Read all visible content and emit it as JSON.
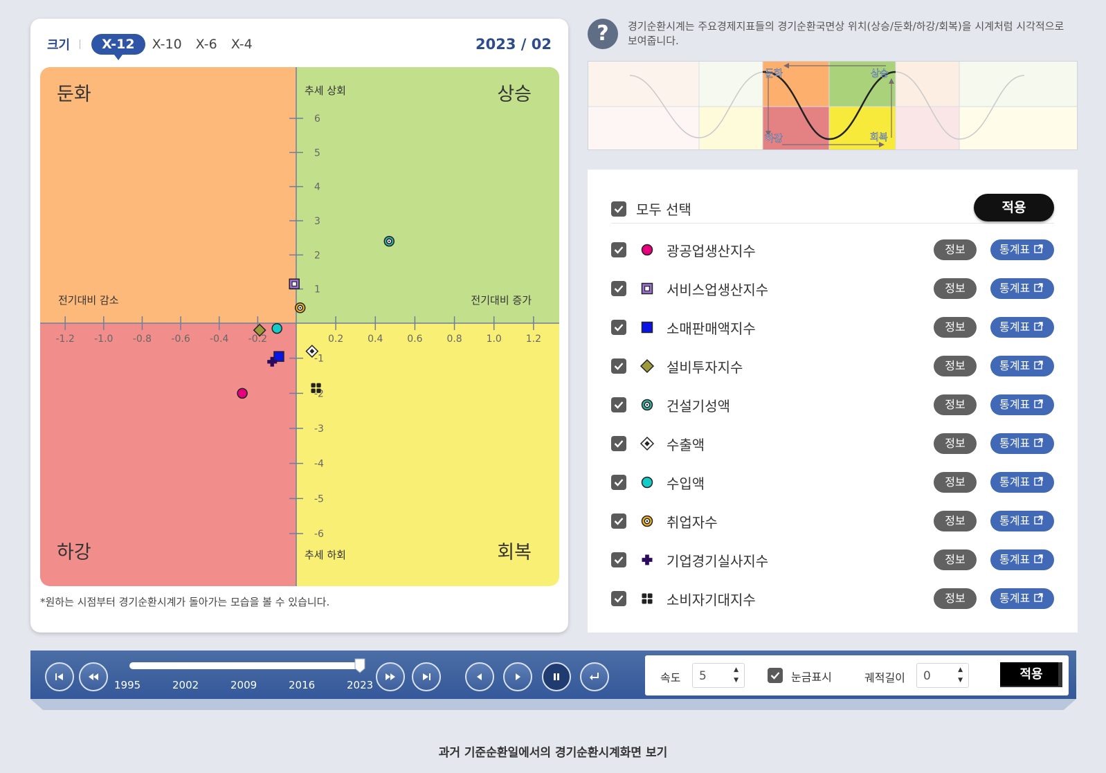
{
  "size": {
    "label": "크기",
    "options": [
      "X-12",
      "X-10",
      "X-6",
      "X-4"
    ],
    "active": 0
  },
  "period": "2023 / 02",
  "chart_note": "*원하는 시점부터 경기순환시계가 돌아가는 모습을 볼 수 있습니다.",
  "chart_data": {
    "type": "scatter",
    "quadrants": {
      "top_left": "둔화",
      "top_right": "상승",
      "bottom_left": "하강",
      "bottom_right": "회복"
    },
    "quadrant_colors": {
      "top_left": "#fdb97a",
      "top_right": "#c2df8c",
      "bottom_left": "#f18e8b",
      "bottom_right": "#f8ef74"
    },
    "axis_labels": {
      "y_top": "추세 상회",
      "y_bottom": "추세 하회",
      "x_left": "전기대비 감소",
      "x_right": "전기대비 증가"
    },
    "xlim": [
      -1.33,
      1.33
    ],
    "ylim": [
      -7.5,
      7.5
    ],
    "x_ticks": [
      -1.2,
      -1.0,
      -0.8,
      -0.6,
      -0.4,
      -0.2,
      0.2,
      0.4,
      0.6,
      0.8,
      1.0,
      1.2
    ],
    "x_tick_labels": [
      "-1.2",
      "-1.0",
      "-0.8",
      "-0.6",
      "-0.4",
      "-0.2",
      "0.2",
      "0.4",
      "0.6",
      "0.8",
      "1.0",
      "1.2"
    ],
    "y_ticks": [
      6,
      5,
      4,
      3,
      2,
      1,
      -1,
      -2,
      -3,
      -4,
      -5,
      -6
    ],
    "y_tick_labels": [
      "6",
      "5",
      "4",
      "3",
      "2",
      "1",
      "-1",
      "-2",
      "-3",
      "-4",
      "-5",
      "-6"
    ],
    "grid": false,
    "series": [
      {
        "name": "광공업생산지수",
        "marker": "circle",
        "color": "#e6007e",
        "x": -0.28,
        "y": -2.0
      },
      {
        "name": "서비스업생산지수",
        "marker": "square-dot",
        "color": "#9a6fd0",
        "x": -0.01,
        "y": 1.15
      },
      {
        "name": "소매판매액지수",
        "marker": "square",
        "color": "#0a14e6",
        "x": -0.09,
        "y": -0.95
      },
      {
        "name": "설비투자지수",
        "marker": "diamond",
        "color": "#9c9a3b",
        "x": -0.19,
        "y": -0.2
      },
      {
        "name": "건설기성액",
        "marker": "circle-dot",
        "color": "#33b3a6",
        "x": 0.47,
        "y": 2.4
      },
      {
        "name": "수출액",
        "marker": "diamond-dot",
        "color": "#ffffff",
        "x": 0.08,
        "y": -0.8
      },
      {
        "name": "수입액",
        "marker": "circle",
        "color": "#14cbc8",
        "x": -0.1,
        "y": -0.15
      },
      {
        "name": "취업자수",
        "marker": "circle-dot",
        "color": "#f1b51c",
        "x": 0.02,
        "y": 0.45
      },
      {
        "name": "기업경기실사지수",
        "marker": "cross",
        "color": "#2b0a5e",
        "x": -0.125,
        "y": -1.1
      },
      {
        "name": "소비자기대지수",
        "marker": "quad",
        "color": "#222222",
        "x": 0.1,
        "y": -1.85
      }
    ]
  },
  "help": {
    "icon": "question-icon",
    "text": "경기순환시계는 주요경제지표들의 경기순환국면상 위치(상승/둔화/하강/회복)을 시계처럼 시각적으로 보여줍니다."
  },
  "cycle_diagram": {
    "labels": [
      "둔화",
      "상승",
      "하강",
      "회복"
    ]
  },
  "indicators": {
    "select_all_label": "모두 선택",
    "apply_label": "적용",
    "info_label": "정보",
    "stat_label": "통계표",
    "stat_icon": "external-link-icon",
    "items": [
      {
        "name": "광공업생산지수",
        "checked": true
      },
      {
        "name": "서비스업생산지수",
        "checked": true
      },
      {
        "name": "소매판매액지수",
        "checked": true
      },
      {
        "name": "설비투자지수",
        "checked": true
      },
      {
        "name": "건설기성액",
        "checked": true
      },
      {
        "name": "수출액",
        "checked": true
      },
      {
        "name": "수입액",
        "checked": true
      },
      {
        "name": "취업자수",
        "checked": true
      },
      {
        "name": "기업경기실사지수",
        "checked": true
      },
      {
        "name": "소비자기대지수",
        "checked": true
      }
    ]
  },
  "timeline": {
    "years": [
      "1995",
      "2002",
      "2009",
      "2016",
      "2023"
    ],
    "position": 0.98,
    "speed_label": "속도",
    "speed_value": "5",
    "grid_label": "눈금표시",
    "grid_checked": true,
    "trail_label": "궤적길이",
    "trail_value": "0",
    "apply_label": "적용"
  },
  "bottom_link": "과거 기준순환일에서의 경기순환시계화면 보기"
}
